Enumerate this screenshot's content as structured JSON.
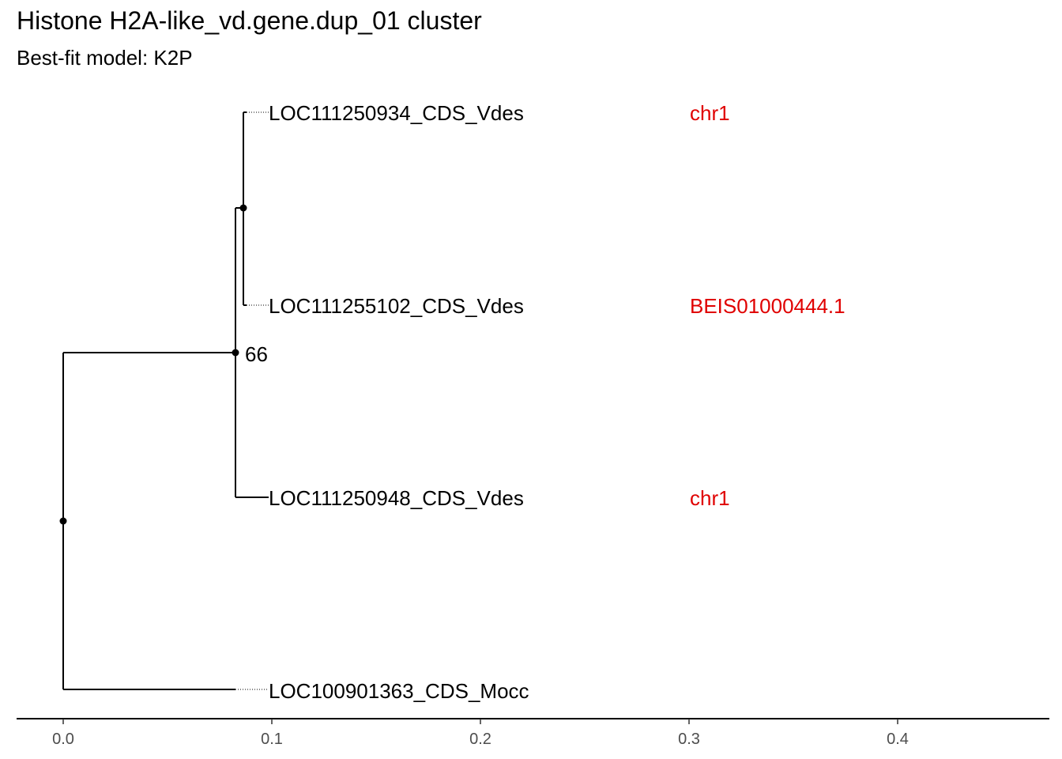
{
  "title": "Histone H2A-like_vd.gene.dup_01 cluster",
  "subtitle": "Best-fit model: K2P",
  "tree": {
    "x_axis": {
      "ticks": [
        "0.0",
        "0.1",
        "0.2",
        "0.3",
        "0.4"
      ],
      "range": [
        0,
        0.4
      ]
    },
    "tips": [
      {
        "label": "LOC111250934_CDS_Vdes",
        "location": "chr1"
      },
      {
        "label": "LOC111255102_CDS_Vdes",
        "location": "BEIS01000444.1"
      },
      {
        "label": "LOC111250948_CDS_Vdes",
        "location": "chr1"
      },
      {
        "label": "LOC100901363_CDS_Mocc",
        "location": ""
      }
    ],
    "support_values": [
      "66"
    ]
  }
}
